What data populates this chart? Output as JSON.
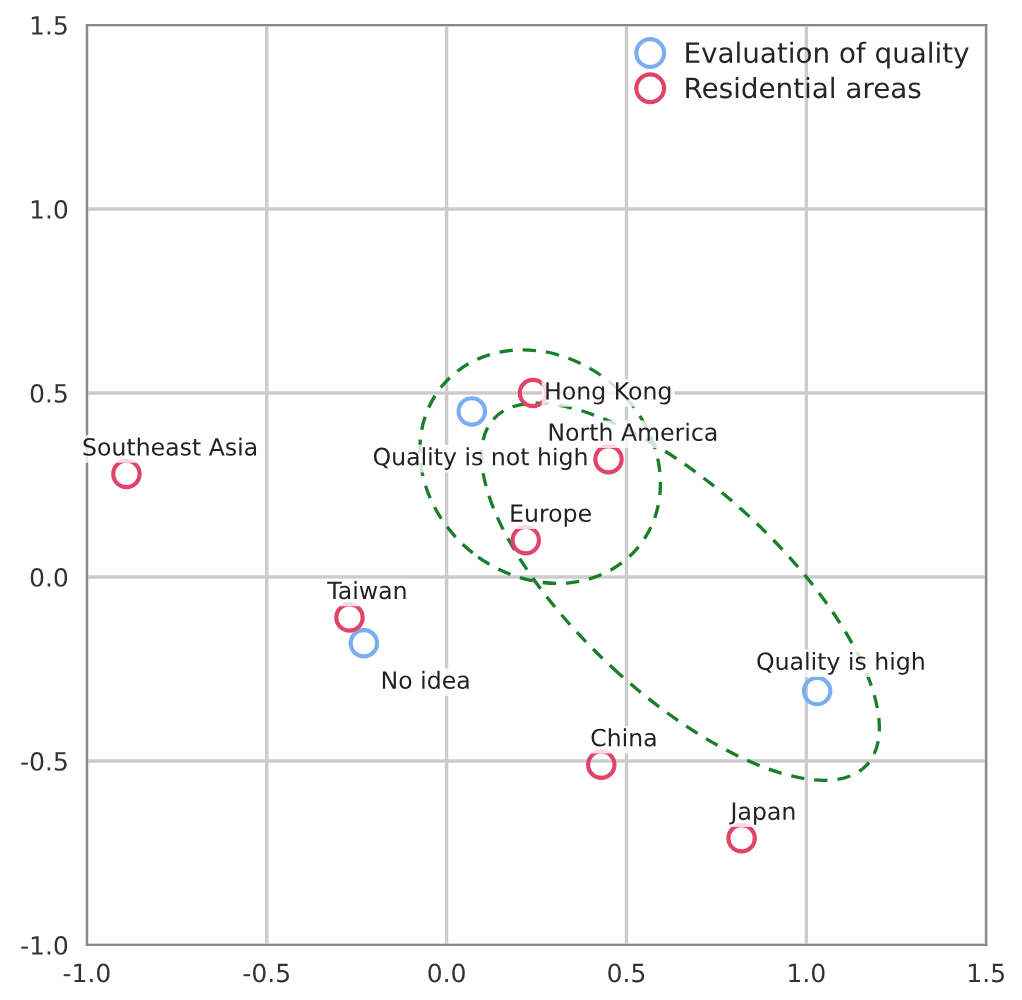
{
  "chart_data": {
    "type": "scatter",
    "series": [
      {
        "name": "Evaluation of quality",
        "color": "#7aaef0",
        "x": [
          0.07,
          -0.23,
          1.03
        ],
        "values": [
          0.45,
          -0.18,
          -0.31
        ]
      },
      {
        "name": "Residential areas",
        "color": "#e2436a",
        "x": [
          0.24,
          0.45,
          0.22,
          -0.89,
          -0.27,
          0.43,
          0.82
        ],
        "values": [
          0.5,
          0.32,
          0.1,
          0.28,
          -0.11,
          -0.51,
          -0.71
        ]
      }
    ],
    "annotations": [
      {
        "text": "Quality is not high",
        "x": 0.07,
        "y": 0.45
      },
      {
        "text": "No idea",
        "x": -0.23,
        "y": -0.18
      },
      {
        "text": "Quality is high",
        "x": 1.03,
        "y": -0.31
      },
      {
        "text": "Hong Kong",
        "x": 0.24,
        "y": 0.5
      },
      {
        "text": "North America",
        "x": 0.45,
        "y": 0.32
      },
      {
        "text": "Europe",
        "x": 0.22,
        "y": 0.1
      },
      {
        "text": "Southeast Asia",
        "x": -0.89,
        "y": 0.28
      },
      {
        "text": "Taiwan",
        "x": -0.27,
        "y": -0.11
      },
      {
        "text": "China",
        "x": 0.43,
        "y": -0.51
      },
      {
        "text": "Japan",
        "x": 0.82,
        "y": -0.71
      }
    ],
    "xlim": [
      -1.0,
      1.5
    ],
    "xticks": [
      {
        "value": -1.0,
        "label": "-1.0"
      },
      {
        "value": -0.5,
        "label": "-0.5"
      },
      {
        "value": 0.0,
        "label": "0.0"
      },
      {
        "value": 0.5,
        "label": "0.5"
      },
      {
        "value": 1.0,
        "label": "1.0"
      },
      {
        "value": 1.5,
        "label": "1.5"
      }
    ],
    "ylim": [
      -1.0,
      1.5
    ],
    "yticks": [
      {
        "value": -1.0,
        "label": "-1.0"
      },
      {
        "value": -0.5,
        "label": "-0.5"
      },
      {
        "value": 0.0,
        "label": "0.0"
      },
      {
        "value": 0.5,
        "label": "0.5"
      },
      {
        "value": 1.0,
        "label": "1.0"
      },
      {
        "value": 1.5,
        "label": "1.5"
      }
    ],
    "grid": true,
    "legend": "top right",
    "marker": "circle"
  }
}
